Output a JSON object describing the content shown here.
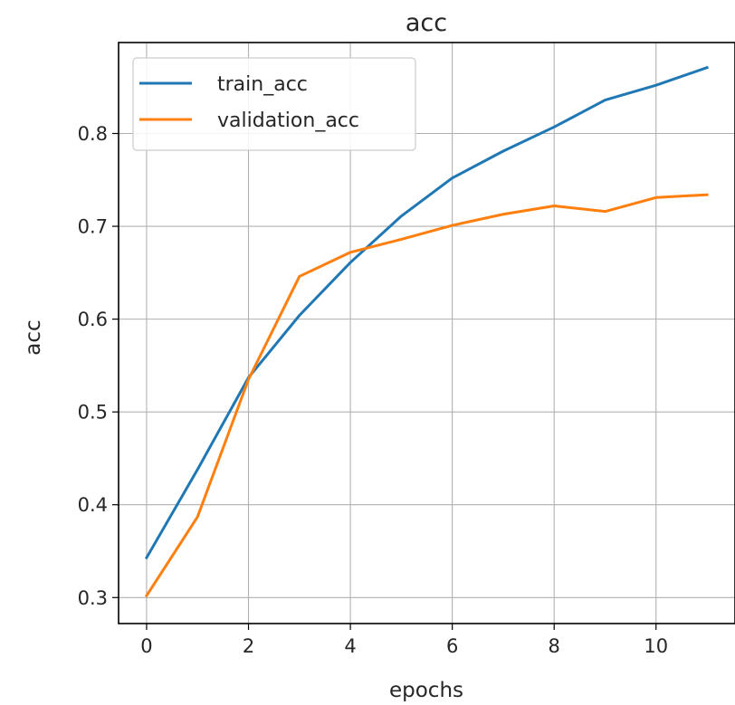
{
  "chart_data": {
    "type": "line",
    "title": "acc",
    "xlabel": "epochs",
    "ylabel": "acc",
    "xlim": [
      -0.55,
      11.55
    ],
    "ylim": [
      0.272,
      0.898
    ],
    "xticks": [
      0,
      2,
      4,
      6,
      8,
      10
    ],
    "yticks": [
      0.3,
      0.4,
      0.5,
      0.6,
      0.7,
      0.8
    ],
    "ytick_labels": [
      "0.3",
      "0.4",
      "0.5",
      "0.6",
      "0.7",
      "0.8"
    ],
    "grid": true,
    "legend_position": "top-left",
    "x": [
      0,
      1,
      2,
      3,
      4,
      5,
      6,
      7,
      8,
      9,
      10,
      11
    ],
    "series": [
      {
        "name": "train_acc",
        "color": "#1f77b4",
        "values": [
          0.343,
          0.438,
          0.537,
          0.604,
          0.661,
          0.711,
          0.752,
          0.781,
          0.807,
          0.836,
          0.852,
          0.871
        ]
      },
      {
        "name": "validation_acc",
        "color": "#ff7f0e",
        "values": [
          0.302,
          0.387,
          0.535,
          0.646,
          0.672,
          0.686,
          0.701,
          0.713,
          0.722,
          0.716,
          0.731,
          0.734
        ]
      }
    ]
  }
}
